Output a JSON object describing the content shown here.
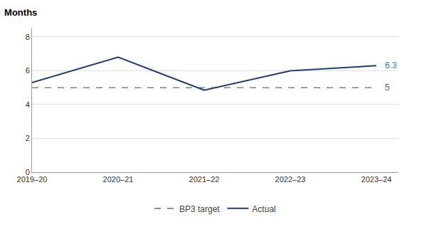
{
  "chart_data": {
    "type": "line",
    "title": "Months",
    "categories": [
      "2019–20",
      "2020–21",
      "2021–22",
      "2022–23",
      "2023–24"
    ],
    "series": [
      {
        "name": "BP3 target",
        "color": "#808080",
        "line_style": "dashed",
        "values": [
          5,
          5,
          5,
          5,
          5
        ]
      },
      {
        "name": "Actual",
        "color": "#1F3D7A",
        "line_style": "solid",
        "values": [
          5.3,
          6.8,
          4.85,
          6.0,
          6.3
        ]
      }
    ],
    "annotations": [
      {
        "text": "6.3",
        "x": "2023–24",
        "y": 6.3,
        "color": "#2E75B6"
      },
      {
        "text": "5",
        "x": "2023–24",
        "y": 5,
        "color": "#606060"
      }
    ],
    "ylim": [
      0,
      8.5
    ],
    "yticks": [
      0,
      2,
      4,
      6,
      8
    ],
    "grid": true,
    "legend": "bottom"
  }
}
